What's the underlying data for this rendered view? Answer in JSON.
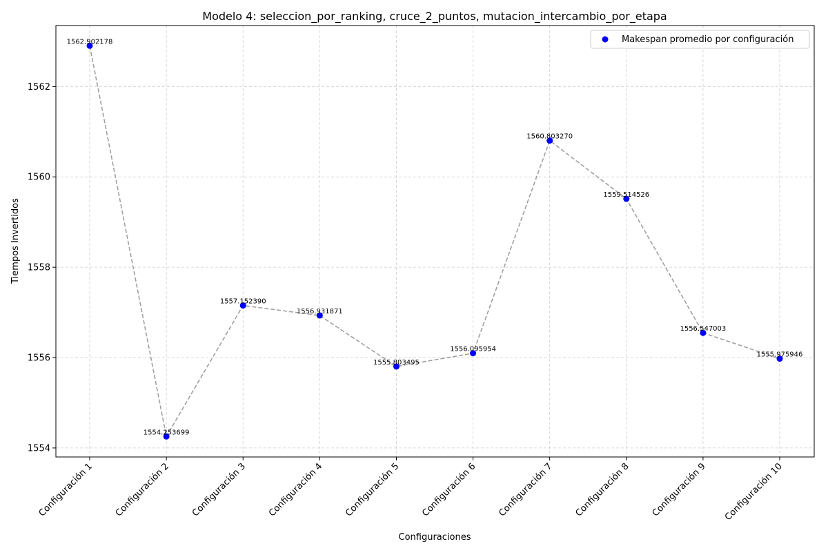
{
  "chart_data": {
    "type": "scatter",
    "title": "Modelo 4: seleccion_por_ranking, cruce_2_puntos, mutacion_intercambio_por_etapa",
    "xlabel": "Configuraciones",
    "ylabel": "Tiempos Invertidos",
    "categories": [
      "Configuración 1",
      "Configuración 2",
      "Configuración 3",
      "Configuración 4",
      "Configuración 5",
      "Configuración 6",
      "Configuración 7",
      "Configuración 8",
      "Configuración 9",
      "Configuración 10"
    ],
    "series": [
      {
        "name": "Makespan promedio por configuración",
        "values": [
          1562.902178,
          1554.253699,
          1557.15239,
          1556.931871,
          1555.803495,
          1556.095954,
          1560.80327,
          1559.514526,
          1556.547003,
          1555.975946
        ],
        "labels": [
          "1562.902178",
          "1554.253699",
          "1557.152390",
          "1556.931871",
          "1555.803495",
          "1556.095954",
          "1560.803270",
          "1559.514526",
          "1556.547003",
          "1555.975946"
        ],
        "marker_color": "#0000ff",
        "connector_color": "#a0a0a0",
        "connector_style": "dashed"
      }
    ],
    "ylim": [
      1553.8,
      1563.35
    ],
    "yticks": [
      1554,
      1556,
      1558,
      1560,
      1562
    ],
    "grid": true,
    "grid_color": "#cccccc",
    "legend_position": "top-right",
    "xtick_rotation": 45
  }
}
